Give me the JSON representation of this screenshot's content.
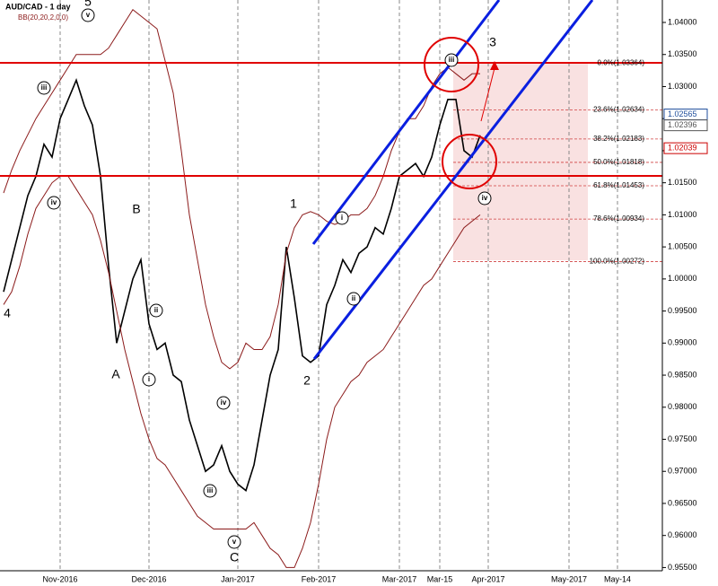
{
  "chart_data": {
    "type": "line",
    "title": "AUD/CAD - 1 day",
    "subtitle": "BB(20,20,2,0,0)",
    "categories": [
      null,
      null,
      null,
      null,
      null,
      null,
      null,
      "Nov-2016",
      null,
      null,
      null,
      null,
      null,
      null,
      null,
      null,
      null,
      null,
      "Dec-2016",
      null,
      null,
      null,
      null,
      null,
      null,
      null,
      null,
      null,
      null,
      "Jan-2017",
      null,
      null,
      null,
      null,
      null,
      null,
      null,
      null,
      null,
      "Feb-2017",
      null,
      null,
      null,
      null,
      null,
      null,
      null,
      null,
      null,
      "Mar-2017",
      null,
      null,
      null,
      null,
      "Mar-15",
      null,
      null,
      null,
      null,
      null,
      "Apr-2017",
      null,
      null,
      null,
      null,
      null,
      null,
      null,
      null,
      null,
      "May-2017",
      null,
      null,
      null,
      null,
      null,
      "May-14",
      null,
      null,
      null,
      null,
      null
    ],
    "series": [
      {
        "color": "#000000",
        "values": [
          0.998,
          1.003,
          1.008,
          1.013,
          1.016,
          1.021,
          1.019,
          1.025,
          1.028,
          1.031,
          1.027,
          1.024,
          1.016,
          1.002,
          0.99,
          0.995,
          1.0,
          1.003,
          0.993,
          0.989,
          0.99,
          0.985,
          0.984,
          0.978,
          0.974,
          0.97,
          0.971,
          0.974,
          0.97,
          0.968,
          0.967,
          0.971,
          0.978,
          0.985,
          0.989,
          1.005,
          0.997,
          0.988,
          0.987,
          0.988,
          0.996,
          0.999,
          1.003,
          1.001,
          1.004,
          1.005,
          1.008,
          1.007,
          1.011,
          1.016,
          1.017,
          1.018,
          1.016,
          1.019,
          1.024,
          1.028,
          1.028,
          1.02,
          1.019,
          1.0224,
          null,
          null,
          null,
          null,
          null,
          null,
          null,
          null,
          null,
          null,
          null,
          null,
          null,
          null,
          null,
          null,
          null,
          null,
          null,
          null,
          null,
          null
        ]
      },
      {
        "color": "#8b1a1a",
        "values": [
          1.0134,
          1.017,
          1.02,
          1.0225,
          1.025,
          1.027,
          1.029,
          1.031,
          1.033,
          1.035,
          1.035,
          1.035,
          1.035,
          1.036,
          1.038,
          1.04,
          1.042,
          1.041,
          1.04,
          1.039,
          1.034,
          1.029,
          1.02,
          1.01,
          1.003,
          0.996,
          0.991,
          0.987,
          0.986,
          0.987,
          0.99,
          0.989,
          0.989,
          0.991,
          0.996,
          1.004,
          1.008,
          1.01,
          1.0105,
          1.01,
          1.009,
          1.0085,
          1.009,
          1.01,
          1.01,
          1.011,
          1.013,
          1.016,
          1.02,
          1.023,
          1.025,
          1.025,
          1.027,
          1.03,
          1.032,
          1.033,
          1.032,
          1.031,
          1.032,
          1.032,
          null,
          null,
          null,
          null,
          null,
          null,
          null,
          null,
          null,
          null,
          null,
          null,
          null,
          null,
          null,
          null,
          null,
          null,
          null,
          null,
          null,
          null
        ]
      },
      {
        "color": "#8b1a1a",
        "values": [
          0.996,
          0.998,
          1.002,
          1.007,
          1.011,
          1.013,
          1.015,
          1.016,
          1.016,
          1.014,
          1.012,
          1.01,
          1.006,
          1.001,
          0.995,
          0.989,
          0.984,
          0.979,
          0.975,
          0.972,
          0.971,
          0.969,
          0.967,
          0.965,
          0.963,
          0.962,
          0.961,
          0.961,
          0.961,
          0.961,
          0.961,
          0.962,
          0.96,
          0.958,
          0.957,
          0.955,
          0.955,
          0.958,
          0.962,
          0.968,
          0.975,
          0.98,
          0.982,
          0.984,
          0.985,
          0.987,
          0.988,
          0.989,
          0.991,
          0.993,
          0.995,
          0.997,
          0.999,
          1.0,
          1.002,
          1.004,
          1.006,
          1.008,
          1.009,
          1.01,
          null,
          null,
          null,
          null,
          null,
          null,
          null,
          null,
          null,
          null,
          null,
          null,
          null,
          null,
          null,
          null,
          null,
          null,
          null,
          null,
          null,
          null
        ]
      }
    ],
    "ylim": [
      0.9545,
      1.0435
    ],
    "yticks": [
      {
        "value": 0.955,
        "label": "0.95500"
      },
      {
        "value": 0.96,
        "label": "0.96000"
      },
      {
        "value": 0.965,
        "label": "0.96500"
      },
      {
        "value": 0.97,
        "label": "0.97000"
      },
      {
        "value": 0.975,
        "label": "0.97500"
      },
      {
        "value": 0.98,
        "label": "0.98000"
      },
      {
        "value": 0.985,
        "label": "0.98500"
      },
      {
        "value": 0.99,
        "label": "0.99000"
      },
      {
        "value": 0.995,
        "label": "0.99500"
      },
      {
        "value": 1.0,
        "label": "1.00000"
      },
      {
        "value": 1.005,
        "label": "1.00500"
      },
      {
        "value": 1.01,
        "label": "1.01000"
      },
      {
        "value": 1.015,
        "label": "1.01500"
      },
      {
        "value": 1.02,
        "label": "1.02000"
      },
      {
        "value": 1.025,
        "label": "1.02500"
      },
      {
        "value": 1.03,
        "label": "1.03000"
      },
      {
        "value": 1.035,
        "label": "1.03500"
      },
      {
        "value": 1.04,
        "label": "1.04000"
      }
    ],
    "price_markers": [
      {
        "value": 1.02565,
        "color": "#1f4e9c"
      },
      {
        "value": 1.02396,
        "color": "#555555"
      },
      {
        "value": 1.02039,
        "color": "#cc0000"
      }
    ],
    "fibonacci": [
      {
        "value": 1.03364,
        "label": "0.0%(1.03364)"
      },
      {
        "value": 1.02634,
        "label": "23.6%(1.02634)"
      },
      {
        "value": 1.02183,
        "label": "38.2%(1.02183)"
      },
      {
        "value": 1.01818,
        "label": "50.0%(1.01818)"
      },
      {
        "value": 1.01453,
        "label": "61.8%(1.01453)"
      },
      {
        "value": 1.00934,
        "label": "78.6%(1.00934)"
      },
      {
        "value": 1.00272,
        "label": "100.0%(1.00272)"
      }
    ],
    "waves": [
      "5",
      "B",
      "A",
      "1",
      "2",
      "3",
      "C",
      "4"
    ],
    "subwaves": [
      "v",
      "iii",
      "iv",
      "ii",
      "i",
      "iv",
      "iii",
      "v",
      "i",
      "ii",
      "iii",
      "iv"
    ]
  }
}
